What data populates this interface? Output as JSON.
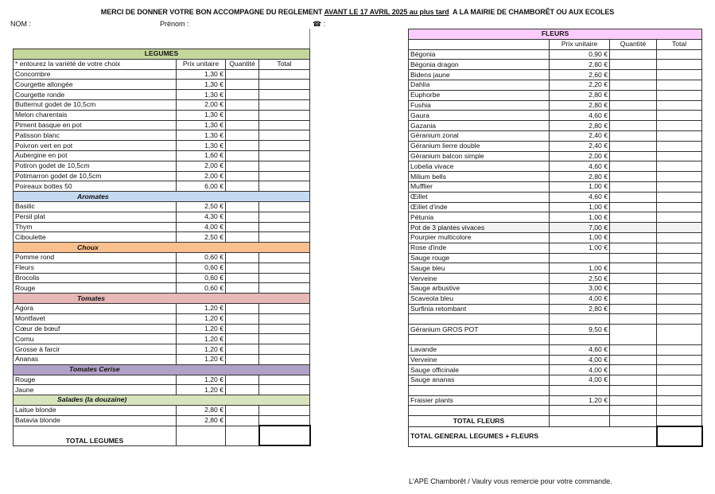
{
  "header": {
    "title_prefix": "MERCI DE DONNER VOTRE BON ACCOMPAGNE DU REGLEMENT ",
    "title_deadline": "AVANT LE 17 AVRIL 2025 au plus tard",
    "title_suffix": "  A LA MAIRIE DE CHAMBORÊT OU AUX ECOLES",
    "nom_label": "NOM :",
    "prenom_label": "Prénom :",
    "phone_label": "☎ :"
  },
  "legumes": {
    "title": "LEGUMES",
    "color": "#c4d79b",
    "columns": [
      "* entourez la variété de votre choix",
      "Prix unitaire",
      "Quantité",
      "Total"
    ],
    "sections": [
      {
        "name": "",
        "items": [
          {
            "name": "Concombre",
            "price": "1,30 €"
          },
          {
            "name": "Courgette allongée",
            "price": "1,30 €"
          },
          {
            "name": "Courgette ronde",
            "price": "1,30 €"
          },
          {
            "name": "Butternut godet de 10,5cm",
            "price": "2,00 €"
          },
          {
            "name": "Melon charentais",
            "price": "1,30 €"
          },
          {
            "name": "Piment basque en pot",
            "price": "1,30 €"
          },
          {
            "name": "Patisson blanc",
            "price": "1,30 €"
          },
          {
            "name": "Poivron vert en pot",
            "price": "1,30 €"
          },
          {
            "name": "Aubergine en pot",
            "price": "1,60 €"
          },
          {
            "name": "Potiron godet de 10,5cm",
            "price": "2,00 €"
          },
          {
            "name": "Potimarron godet de 10,5cm",
            "price": "2,00 €"
          },
          {
            "name": "Poireaux bottes 50",
            "price": "6,00 €"
          }
        ]
      },
      {
        "name": "Aromates",
        "color": "#c5d9f1",
        "items": [
          {
            "name": "Basilic",
            "price": "2,50 €"
          },
          {
            "name": "Persil plat",
            "price": "4,30 €"
          },
          {
            "name": "Thym",
            "price": "4,00 €"
          },
          {
            "name": "Ciboulette",
            "price": "2,50 €"
          }
        ]
      },
      {
        "name": "Choux",
        "color": "#fabf8f",
        "items": [
          {
            "name": "Pomme rond",
            "price": "0,60 €"
          },
          {
            "name": "Fleurs",
            "price": "0,60 €"
          },
          {
            "name": "Brocolis",
            "price": "0,60 €"
          },
          {
            "name": "Rouge",
            "price": "0,60 €"
          }
        ]
      },
      {
        "name": "Tomates",
        "color": "#e6b8b7",
        "items": [
          {
            "name": "Agora",
            "price": "1,20 €"
          },
          {
            "name": "Montfavet",
            "price": "1,20 €"
          },
          {
            "name": "Cœur de bœuf",
            "price": "1,20 €"
          },
          {
            "name": "Cornu",
            "price": "1,20 €"
          },
          {
            "name": "Grosse à farcir",
            "price": "1,20 €"
          },
          {
            "name": "Ananas",
            "price": "1,20 €"
          }
        ]
      },
      {
        "name": "Tomates Cerise",
        "color": "#b1a0c7",
        "items": [
          {
            "name": "Rouge",
            "price": "1,20 €"
          },
          {
            "name": "Jaune",
            "price": "1,20 €"
          }
        ]
      },
      {
        "name": "Salades (la douzaine)",
        "color": "#d8e4bc",
        "items": [
          {
            "name": "Laitue blonde",
            "price": "2,80 €"
          },
          {
            "name": "Batavia blonde",
            "price": "2,80 €"
          }
        ]
      }
    ],
    "total_label": "TOTAL LEGUMES"
  },
  "fleurs": {
    "title": "FLEURS",
    "color": "#ffccff",
    "columns": [
      "",
      "Prix unitaire",
      "Quantité",
      "Total"
    ],
    "items": [
      {
        "name": "Bégonia",
        "price": "0,90 €"
      },
      {
        "name": "Bégonia dragon",
        "price": "2,80 €"
      },
      {
        "name": "Bidens jaune",
        "price": "2,60 €"
      },
      {
        "name": "Dahlia",
        "price": "2,20 €"
      },
      {
        "name": "Euphorbe",
        "price": "2,80 €"
      },
      {
        "name": "Fushia",
        "price": "2,80 €"
      },
      {
        "name": "Gaura",
        "price": "4,60 €"
      },
      {
        "name": "Gazania",
        "price": "2,80 €"
      },
      {
        "name": "Géranium zonal",
        "price": "2,40 €"
      },
      {
        "name": "Géranium lierre double",
        "price": "2,40 €"
      },
      {
        "name": "Géranium balcon simple",
        "price": "2,00 €"
      },
      {
        "name": "Lobelia vivace",
        "price": "4,60 €"
      },
      {
        "name": "Milium bells",
        "price": "2,80 €"
      },
      {
        "name": "Mufflier",
        "price": "1,00 €"
      },
      {
        "name": "Œillet",
        "price": "4,60 €"
      },
      {
        "name": "Œillet d'inde",
        "price": "1,00 €"
      },
      {
        "name": "Pétunia",
        "price": "1,00 €"
      },
      {
        "name": "Pot de 3 plantes vivaces",
        "price": "7,00 €"
      },
      {
        "name": "Pourpier multicolore",
        "price": "1,00 €"
      },
      {
        "name": "Rose d'inde",
        "price": "1,00 €"
      },
      {
        "name": "Sauge rouge",
        "price": ""
      },
      {
        "name": "Sauge bleu",
        "price": "1,00 €"
      },
      {
        "name": "Verveine",
        "price": "2,50 €"
      },
      {
        "name": "Sauge arbustive",
        "price": "3,00 €"
      },
      {
        "name": "Scaveola bleu",
        "price": "4,00 €"
      },
      {
        "name": "Surfinia retombant",
        "price": "2,80 €"
      },
      {
        "name": "",
        "price": ""
      },
      {
        "name": "Géranium GROS POT",
        "price": "9,50 €"
      },
      {
        "name": "",
        "price": ""
      },
      {
        "name": "Lavande",
        "price": "4,60 €"
      },
      {
        "name": "Verveine",
        "price": "4,00 €"
      },
      {
        "name": "Sauge officinale",
        "price": "4,00 €"
      },
      {
        "name": "Sauge ananas",
        "price": "4,00 €"
      },
      {
        "name": "",
        "price": ""
      },
      {
        "name": "Fraisier plants",
        "price": "1,20 €"
      },
      {
        "name": "",
        "price": ""
      }
    ],
    "total_label": "TOTAL FLEURS",
    "grand_total_label": "TOTAL GENERAL LEGUMES + FLEURS"
  },
  "footer": {
    "thanks": "L'APE Chamborêt / Vaulry vous remercie pour votre commande."
  }
}
